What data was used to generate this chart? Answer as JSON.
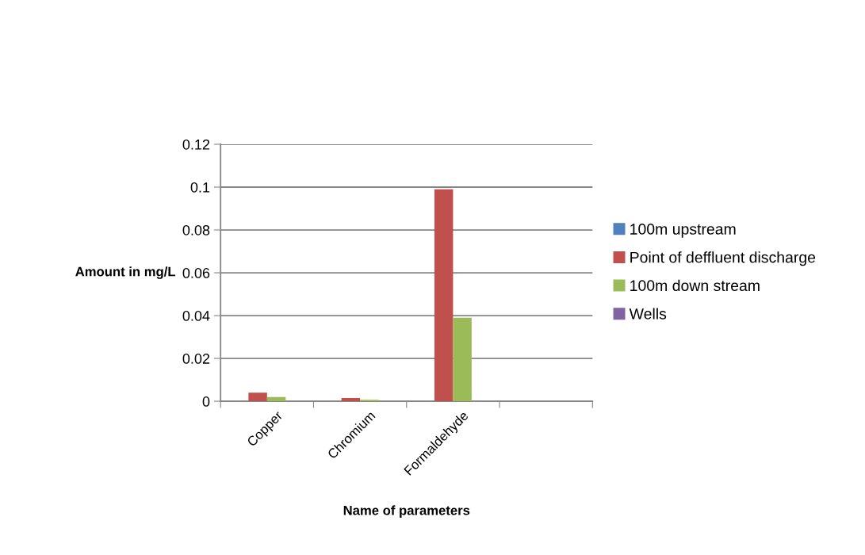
{
  "chart_data": {
    "type": "bar",
    "xlabel": "Name of parameters",
    "ylabel": "Amount in mg/L",
    "categories": [
      "Copper",
      "Chromium",
      "Formaldehyde",
      null
    ],
    "series": [
      {
        "name": "100m upstream",
        "color": "#4f81bd",
        "values": [
          null,
          null,
          null,
          null
        ]
      },
      {
        "name": "Point of deffluent discharge",
        "color": "#c0504d",
        "values": [
          0.004,
          0.0015,
          0.099,
          null
        ]
      },
      {
        "name": "100m down stream",
        "color": "#9bbb59",
        "values": [
          0.002,
          0.0007,
          0.039,
          null
        ]
      },
      {
        "name": "Wells",
        "color": "#8064a2",
        "values": [
          null,
          null,
          null,
          null
        ]
      }
    ],
    "ylim": [
      0,
      0.12
    ],
    "yticks": [
      0,
      0.02,
      0.04,
      0.06,
      0.08,
      0.1,
      0.12
    ],
    "grid": "y",
    "legend": "right"
  }
}
